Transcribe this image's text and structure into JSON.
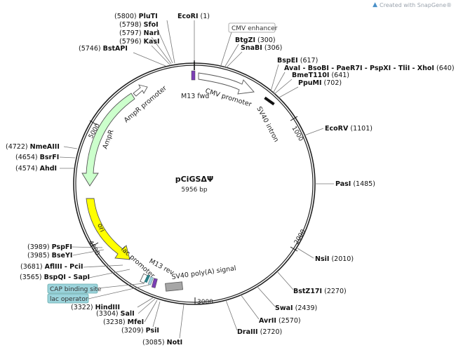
{
  "credit": {
    "text": "Created with SnapGene®",
    "icon": "snapgene-logo-icon"
  },
  "plasmid": {
    "name": "pCiGSΔΨ",
    "size": "5956 bp"
  },
  "ticks": [
    "1000",
    "2000",
    "3000",
    "4000",
    "5000"
  ],
  "features": {
    "cmv_enhancer": "CMV enhancer",
    "cmv_promoter": "CMV promoter",
    "m13_fwd": "M13 fwd",
    "sv40_intron": "SV40 intron",
    "ampr_promoter": "AmpR promoter",
    "ampr": "AmpR",
    "ori": "ori",
    "lac_promoter": "lac promoter",
    "m13_rev": "M13 rev",
    "sv40_polya": "SV40 poly(A) signal",
    "cap_site": "CAP binding site",
    "lac_operator": "lac operator"
  },
  "colors": {
    "ampr": "#ccffcc",
    "ori": "#ffff00",
    "promoter": "#ffffff",
    "m13": "#7b3fb5",
    "sv40_polya": "#a6a6a6",
    "box_label": "#9cd4dc"
  },
  "sites": [
    {
      "name": "PluTI",
      "pos": "(5800)"
    },
    {
      "name": "EcoRI",
      "pos": "(1)"
    },
    {
      "name": "SfoI",
      "pos": "(5798)"
    },
    {
      "name": "NarI",
      "pos": "(5797)"
    },
    {
      "name": "KasI",
      "pos": "(5796)"
    },
    {
      "name": "BstAPI",
      "pos": "(5746)"
    },
    {
      "name": "BtgZI",
      "pos": "(300)"
    },
    {
      "name": "SnaBI",
      "pos": "(306)"
    },
    {
      "name": "BspEI",
      "pos": "(617)"
    },
    {
      "name": "AvaI - BsoBI - PaeR7I - PspXI - TliI - XhoI",
      "pos": "(640)"
    },
    {
      "name": "BmeT110I",
      "pos": "(641)"
    },
    {
      "name": "PpuMI",
      "pos": "(702)"
    },
    {
      "name": "EcoRV",
      "pos": "(1101)"
    },
    {
      "name": "PasI",
      "pos": "(1485)"
    },
    {
      "name": "NsiI",
      "pos": "(2010)"
    },
    {
      "name": "BstZ17I",
      "pos": "(2270)"
    },
    {
      "name": "SwaI",
      "pos": "(2439)"
    },
    {
      "name": "AvrII",
      "pos": "(2570)"
    },
    {
      "name": "DraIII",
      "pos": "(2720)"
    },
    {
      "name": "NotI",
      "pos": "(3085)"
    },
    {
      "name": "PsiI",
      "pos": "(3209)"
    },
    {
      "name": "MfeI",
      "pos": "(3238)"
    },
    {
      "name": "SalI",
      "pos": "(3304)"
    },
    {
      "name": "HindIII",
      "pos": "(3322)"
    },
    {
      "name": "BspQI - SapI",
      "pos": "(3565)"
    },
    {
      "name": "AflIII - PciI",
      "pos": "(3681)"
    },
    {
      "name": "BseYI",
      "pos": "(3985)"
    },
    {
      "name": "PspFI",
      "pos": "(3989)"
    },
    {
      "name": "AhdI",
      "pos": "(4574)"
    },
    {
      "name": "BsrFI",
      "pos": "(4654)"
    },
    {
      "name": "NmeAIII",
      "pos": "(4722)"
    }
  ]
}
